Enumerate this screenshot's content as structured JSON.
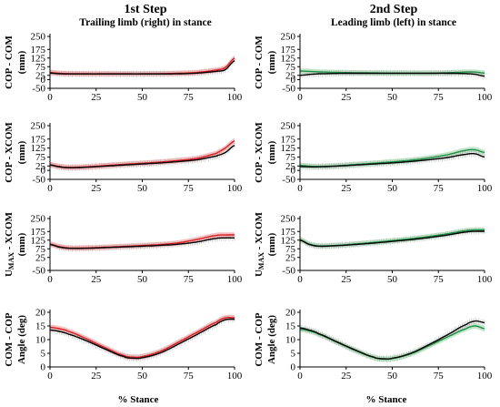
{
  "columns": [
    {
      "title": "1st Step",
      "subtitle": "Trailing limb (right) in stance",
      "color_band": "#f08a8a",
      "color_line": "#d81f26"
    },
    {
      "title": "2nd Step",
      "subtitle": "Leading limb (left) in stance",
      "color_band": "#8fcf9f",
      "color_line": "#1f8f45"
    }
  ],
  "xlabel": "% Stance",
  "chart_data": [
    {
      "type": "line",
      "panel": "COP - COM, 1st Step",
      "ylabel": [
        "COP - COM",
        "(mm)"
      ],
      "xlim": [
        0,
        100
      ],
      "ylim": [
        -50,
        250
      ],
      "yticks": [
        -50,
        0,
        25,
        75,
        125,
        175,
        250
      ],
      "xticks": [
        0,
        25,
        50,
        75,
        100
      ],
      "x": [
        0,
        5,
        10,
        20,
        30,
        40,
        50,
        60,
        70,
        80,
        90,
        95,
        100
      ],
      "series": [
        {
          "values": [
            38,
            34,
            33,
            33,
            33,
            33,
            33,
            33,
            34,
            38,
            48,
            58,
            110
          ]
        },
        {
          "values": [
            42,
            37,
            35,
            34,
            34,
            34,
            34,
            35,
            37,
            42,
            55,
            70,
            125
          ]
        }
      ]
    },
    {
      "type": "line",
      "panel": "COP - COM, 2nd Step",
      "ylabel": [
        "COP - COM",
        "(mm)"
      ],
      "xlim": [
        0,
        100
      ],
      "ylim": [
        -50,
        250
      ],
      "yticks": [
        -50,
        0,
        25,
        75,
        125,
        175,
        250
      ],
      "xticks": [
        0,
        25,
        50,
        75,
        100
      ],
      "x": [
        0,
        5,
        10,
        20,
        30,
        40,
        50,
        60,
        70,
        80,
        90,
        95,
        100
      ],
      "series": [
        {
          "values": [
            25,
            30,
            34,
            36,
            37,
            37,
            37,
            37,
            37,
            37,
            35,
            31,
            20
          ]
        },
        {
          "values": [
            50,
            48,
            45,
            42,
            40,
            39,
            38,
            38,
            38,
            40,
            44,
            44,
            38
          ]
        }
      ]
    },
    {
      "type": "line",
      "panel": "COP - XCOM, 1st Step",
      "ylabel": [
        "COP - XCOM",
        "(mm)"
      ],
      "xlim": [
        0,
        100
      ],
      "ylim": [
        -50,
        250
      ],
      "yticks": [
        -50,
        0,
        25,
        75,
        125,
        175,
        250
      ],
      "xticks": [
        0,
        25,
        50,
        75,
        100
      ],
      "x": [
        0,
        5,
        10,
        20,
        30,
        40,
        50,
        60,
        70,
        80,
        90,
        95,
        100
      ],
      "series": [
        {
          "values": [
            30,
            20,
            15,
            18,
            24,
            30,
            36,
            42,
            50,
            60,
            80,
            100,
            140
          ]
        },
        {
          "values": [
            32,
            22,
            17,
            20,
            27,
            34,
            40,
            47,
            56,
            68,
            95,
            125,
            165
          ]
        }
      ]
    },
    {
      "type": "line",
      "panel": "COP - XCOM, 2nd Step",
      "ylabel": [
        "COP - XCOM",
        "(mm)"
      ],
      "xlim": [
        0,
        100
      ],
      "ylim": [
        -50,
        250
      ],
      "yticks": [
        -50,
        0,
        25,
        75,
        125,
        175,
        250
      ],
      "xticks": [
        0,
        25,
        50,
        75,
        100
      ],
      "x": [
        0,
        5,
        10,
        20,
        30,
        40,
        50,
        60,
        70,
        80,
        90,
        95,
        100
      ],
      "series": [
        {
          "values": [
            22,
            20,
            20,
            24,
            30,
            36,
            42,
            50,
            60,
            72,
            90,
            93,
            75
          ]
        },
        {
          "values": [
            28,
            24,
            22,
            26,
            33,
            40,
            48,
            57,
            70,
            88,
            112,
            115,
            100
          ]
        }
      ]
    },
    {
      "type": "line",
      "panel": "UMAX - XCOM, 1st Step",
      "ylabel": [
        "U",
        "MAX",
        " - XCOM",
        "(mm)"
      ],
      "xlim": [
        0,
        100
      ],
      "ylim": [
        -50,
        250
      ],
      "yticks": [
        -50,
        25,
        75,
        125,
        175,
        250
      ],
      "xticks": [
        0,
        25,
        50,
        75,
        100
      ],
      "x": [
        0,
        5,
        10,
        20,
        30,
        40,
        50,
        60,
        70,
        80,
        90,
        95,
        100
      ],
      "series": [
        {
          "values": [
            100,
            85,
            78,
            78,
            82,
            86,
            90,
            95,
            102,
            115,
            135,
            138,
            138
          ]
        },
        {
          "values": [
            102,
            88,
            80,
            80,
            84,
            89,
            94,
            100,
            110,
            130,
            152,
            155,
            155
          ]
        }
      ]
    },
    {
      "type": "line",
      "panel": "UMAX - XCOM, 2nd Step",
      "ylabel": [
        "U",
        "MAX",
        " - XCOM",
        "(mm)"
      ],
      "xlim": [
        0,
        100
      ],
      "ylim": [
        -50,
        250
      ],
      "yticks": [
        -50,
        25,
        75,
        125,
        175,
        250
      ],
      "xticks": [
        0,
        25,
        50,
        75,
        100
      ],
      "x": [
        0,
        5,
        10,
        20,
        30,
        40,
        50,
        60,
        70,
        80,
        90,
        95,
        100
      ],
      "series": [
        {
          "values": [
            125,
            100,
            90,
            93,
            100,
            108,
            118,
            128,
            140,
            155,
            172,
            176,
            176
          ]
        },
        {
          "values": [
            128,
            103,
            92,
            95,
            103,
            112,
            122,
            133,
            146,
            162,
            180,
            184,
            184
          ]
        }
      ]
    },
    {
      "type": "line",
      "panel": "COM - COP Angle, 1st Step",
      "ylabel": [
        "COM - COP",
        "Angle (deg)"
      ],
      "xlim": [
        0,
        100
      ],
      "ylim": [
        0,
        20
      ],
      "yticks": [
        0,
        5,
        10,
        15,
        20
      ],
      "xticks": [
        0,
        25,
        50,
        75,
        100
      ],
      "x": [
        0,
        5,
        10,
        20,
        30,
        40,
        45,
        50,
        60,
        70,
        80,
        90,
        95,
        100
      ],
      "series": [
        {
          "values": [
            13.5,
            13,
            12,
            9.5,
            6.5,
            3.8,
            3.2,
            3.4,
            5.2,
            8.5,
            12,
            15.5,
            17.3,
            17.5
          ]
        },
        {
          "values": [
            14.5,
            14,
            13,
            10.2,
            7,
            4.2,
            3.6,
            3.8,
            5.8,
            9.2,
            12.8,
            16.3,
            18,
            18
          ]
        }
      ]
    },
    {
      "type": "line",
      "panel": "COM - COP Angle, 2nd Step",
      "ylabel": [
        "COM - COP",
        "Angle (deg)"
      ],
      "xlim": [
        0,
        100
      ],
      "ylim": [
        0,
        20
      ],
      "yticks": [
        0,
        5,
        10,
        15,
        20
      ],
      "xticks": [
        0,
        25,
        50,
        75,
        100
      ],
      "x": [
        0,
        5,
        10,
        20,
        30,
        40,
        45,
        50,
        60,
        70,
        80,
        90,
        95,
        100
      ],
      "series": [
        {
          "values": [
            14.3,
            13.5,
            12.2,
            9.2,
            6.2,
            3.6,
            3.0,
            3.2,
            5.0,
            8.2,
            11.8,
            15.5,
            16.8,
            16.2
          ]
        },
        {
          "values": [
            13.8,
            13.2,
            12,
            9,
            6,
            3.5,
            2.9,
            3.1,
            4.8,
            7.8,
            11,
            14,
            15,
            14
          ]
        }
      ]
    }
  ]
}
